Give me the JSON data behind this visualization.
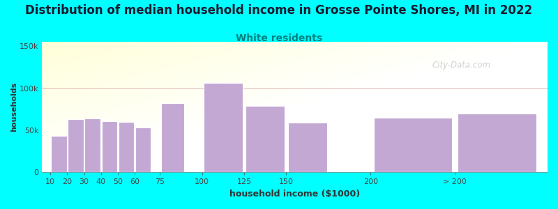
{
  "title": "Distribution of median household income in Grosse Pointe Shores, MI in 2022",
  "subtitle": "White residents",
  "xlabel": "household income ($1000)",
  "ylabel": "households",
  "background_color": "#00FFFF",
  "bar_color": "#C4A8D4",
  "bar_edge_color": "#FFFFFF",
  "values": [
    43000,
    63000,
    64000,
    61000,
    60000,
    53000,
    82000,
    106000,
    79000,
    59000,
    65000,
    70000
  ],
  "bar_widths": [
    10,
    10,
    10,
    10,
    10,
    10,
    15,
    25,
    25,
    25,
    50,
    50
  ],
  "bar_lefts": [
    10,
    20,
    30,
    40,
    50,
    60,
    75,
    100,
    125,
    150,
    200,
    250
  ],
  "xlim": [
    5,
    305
  ],
  "ylim": [
    0,
    155000
  ],
  "yticks": [
    0,
    50000,
    100000,
    150000
  ],
  "ytick_labels": [
    "0",
    "50k",
    "100k",
    "150k"
  ],
  "xtick_positions": [
    10,
    20,
    30,
    40,
    50,
    60,
    75,
    100,
    125,
    150,
    200,
    250
  ],
  "xtick_labels": [
    "10",
    "20",
    "30",
    "40",
    "50",
    "60",
    "75",
    "100",
    "125",
    "150",
    "200",
    "> 200"
  ],
  "title_fontsize": 12,
  "subtitle_fontsize": 10,
  "subtitle_color": "#008080",
  "axis_bg_color_topleft": "#E8FFE8",
  "axis_bg_color_right": "#FFFFFF",
  "watermark": "City-Data.com"
}
